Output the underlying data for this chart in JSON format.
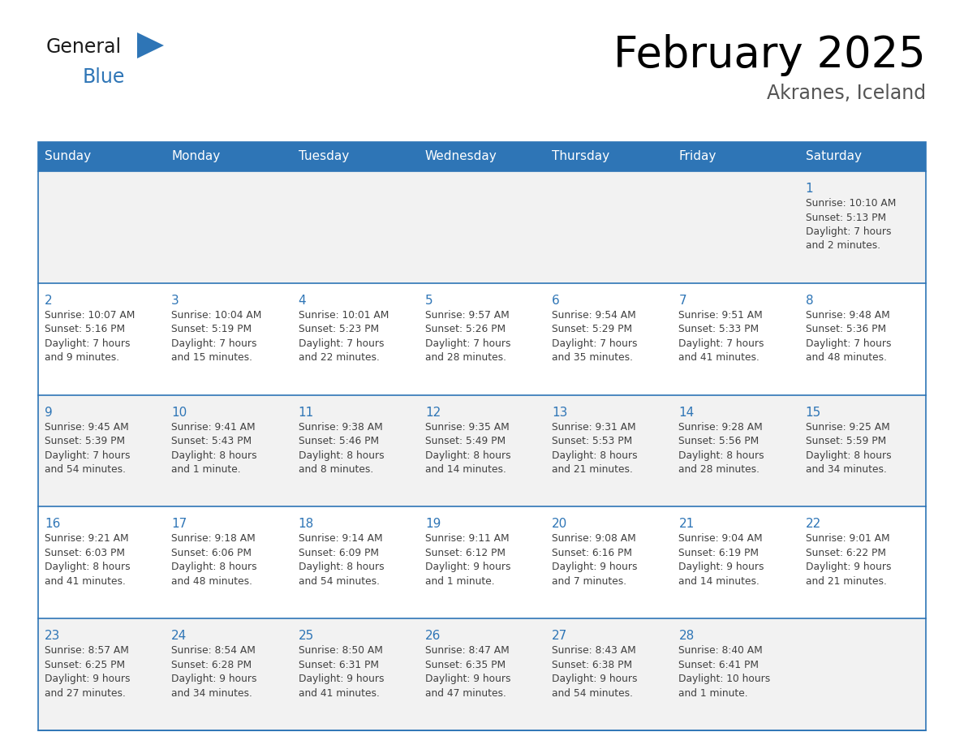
{
  "title": "February 2025",
  "subtitle": "Akranes, Iceland",
  "days_of_week": [
    "Sunday",
    "Monday",
    "Tuesday",
    "Wednesday",
    "Thursday",
    "Friday",
    "Saturday"
  ],
  "header_bg": "#2e75b6",
  "header_text_color": "#ffffff",
  "cell_bg_row0": "#f2f2f2",
  "cell_bg_row1": "#ffffff",
  "cell_bg_row2": "#f2f2f2",
  "cell_bg_row3": "#ffffff",
  "cell_bg_row4": "#f2f2f2",
  "cell_border_color": "#2e75b6",
  "day_number_color": "#2e75b6",
  "cell_text_color": "#404040",
  "title_color": "#000000",
  "subtitle_color": "#555555",
  "calendar_data": [
    [
      {
        "day": null,
        "info": ""
      },
      {
        "day": null,
        "info": ""
      },
      {
        "day": null,
        "info": ""
      },
      {
        "day": null,
        "info": ""
      },
      {
        "day": null,
        "info": ""
      },
      {
        "day": null,
        "info": ""
      },
      {
        "day": 1,
        "info": "Sunrise: 10:10 AM\nSunset: 5:13 PM\nDaylight: 7 hours\nand 2 minutes."
      }
    ],
    [
      {
        "day": 2,
        "info": "Sunrise: 10:07 AM\nSunset: 5:16 PM\nDaylight: 7 hours\nand 9 minutes."
      },
      {
        "day": 3,
        "info": "Sunrise: 10:04 AM\nSunset: 5:19 PM\nDaylight: 7 hours\nand 15 minutes."
      },
      {
        "day": 4,
        "info": "Sunrise: 10:01 AM\nSunset: 5:23 PM\nDaylight: 7 hours\nand 22 minutes."
      },
      {
        "day": 5,
        "info": "Sunrise: 9:57 AM\nSunset: 5:26 PM\nDaylight: 7 hours\nand 28 minutes."
      },
      {
        "day": 6,
        "info": "Sunrise: 9:54 AM\nSunset: 5:29 PM\nDaylight: 7 hours\nand 35 minutes."
      },
      {
        "day": 7,
        "info": "Sunrise: 9:51 AM\nSunset: 5:33 PM\nDaylight: 7 hours\nand 41 minutes."
      },
      {
        "day": 8,
        "info": "Sunrise: 9:48 AM\nSunset: 5:36 PM\nDaylight: 7 hours\nand 48 minutes."
      }
    ],
    [
      {
        "day": 9,
        "info": "Sunrise: 9:45 AM\nSunset: 5:39 PM\nDaylight: 7 hours\nand 54 minutes."
      },
      {
        "day": 10,
        "info": "Sunrise: 9:41 AM\nSunset: 5:43 PM\nDaylight: 8 hours\nand 1 minute."
      },
      {
        "day": 11,
        "info": "Sunrise: 9:38 AM\nSunset: 5:46 PM\nDaylight: 8 hours\nand 8 minutes."
      },
      {
        "day": 12,
        "info": "Sunrise: 9:35 AM\nSunset: 5:49 PM\nDaylight: 8 hours\nand 14 minutes."
      },
      {
        "day": 13,
        "info": "Sunrise: 9:31 AM\nSunset: 5:53 PM\nDaylight: 8 hours\nand 21 minutes."
      },
      {
        "day": 14,
        "info": "Sunrise: 9:28 AM\nSunset: 5:56 PM\nDaylight: 8 hours\nand 28 minutes."
      },
      {
        "day": 15,
        "info": "Sunrise: 9:25 AM\nSunset: 5:59 PM\nDaylight: 8 hours\nand 34 minutes."
      }
    ],
    [
      {
        "day": 16,
        "info": "Sunrise: 9:21 AM\nSunset: 6:03 PM\nDaylight: 8 hours\nand 41 minutes."
      },
      {
        "day": 17,
        "info": "Sunrise: 9:18 AM\nSunset: 6:06 PM\nDaylight: 8 hours\nand 48 minutes."
      },
      {
        "day": 18,
        "info": "Sunrise: 9:14 AM\nSunset: 6:09 PM\nDaylight: 8 hours\nand 54 minutes."
      },
      {
        "day": 19,
        "info": "Sunrise: 9:11 AM\nSunset: 6:12 PM\nDaylight: 9 hours\nand 1 minute."
      },
      {
        "day": 20,
        "info": "Sunrise: 9:08 AM\nSunset: 6:16 PM\nDaylight: 9 hours\nand 7 minutes."
      },
      {
        "day": 21,
        "info": "Sunrise: 9:04 AM\nSunset: 6:19 PM\nDaylight: 9 hours\nand 14 minutes."
      },
      {
        "day": 22,
        "info": "Sunrise: 9:01 AM\nSunset: 6:22 PM\nDaylight: 9 hours\nand 21 minutes."
      }
    ],
    [
      {
        "day": 23,
        "info": "Sunrise: 8:57 AM\nSunset: 6:25 PM\nDaylight: 9 hours\nand 27 minutes."
      },
      {
        "day": 24,
        "info": "Sunrise: 8:54 AM\nSunset: 6:28 PM\nDaylight: 9 hours\nand 34 minutes."
      },
      {
        "day": 25,
        "info": "Sunrise: 8:50 AM\nSunset: 6:31 PM\nDaylight: 9 hours\nand 41 minutes."
      },
      {
        "day": 26,
        "info": "Sunrise: 8:47 AM\nSunset: 6:35 PM\nDaylight: 9 hours\nand 47 minutes."
      },
      {
        "day": 27,
        "info": "Sunrise: 8:43 AM\nSunset: 6:38 PM\nDaylight: 9 hours\nand 54 minutes."
      },
      {
        "day": 28,
        "info": "Sunrise: 8:40 AM\nSunset: 6:41 PM\nDaylight: 10 hours\nand 1 minute."
      },
      {
        "day": null,
        "info": ""
      }
    ]
  ]
}
